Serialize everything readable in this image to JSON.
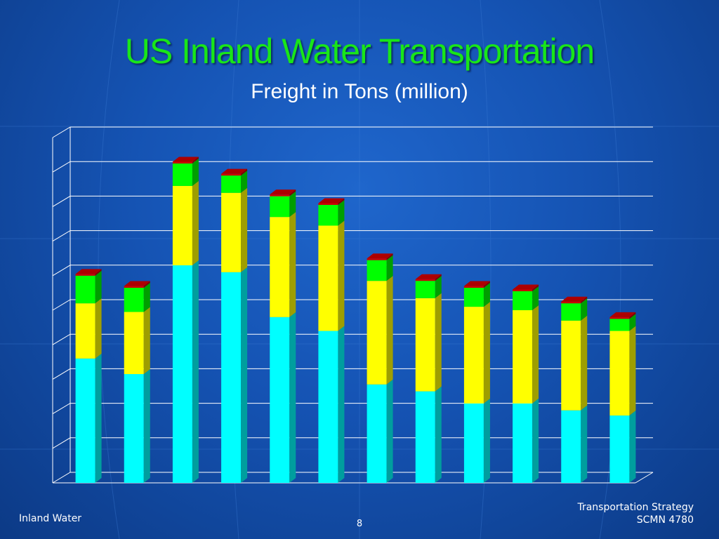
{
  "slide": {
    "title": "US Inland Water Transportation",
    "subtitle": "Freight in Tons (million)"
  },
  "footer": {
    "left": "Inland Water",
    "page_number": "8",
    "right_line1": "Transportation Strategy",
    "right_line2": "SCMN 4780"
  },
  "colors": {
    "series_1": "#00ffff",
    "series_2": "#ffff00",
    "series_3": "#00ff00",
    "series_4": "#cc0000",
    "background": "#1553b3"
  },
  "chart_data": {
    "type": "bar",
    "stacked": true,
    "three_d": true,
    "categories": [
      "",
      "",
      "",
      "",
      "",
      "",
      "",
      "",
      "",
      "",
      "",
      ""
    ],
    "series": [
      {
        "values": [
          3.6,
          3.15,
          6.3,
          6.1,
          4.8,
          4.4,
          2.85,
          2.65,
          2.3,
          2.3,
          2.1,
          1.95
        ]
      },
      {
        "values": [
          1.6,
          1.8,
          2.3,
          2.3,
          2.9,
          3.05,
          3.0,
          2.7,
          2.8,
          2.7,
          2.6,
          2.45
        ]
      },
      {
        "values": [
          0.8,
          0.7,
          0.65,
          0.5,
          0.6,
          0.6,
          0.6,
          0.5,
          0.55,
          0.55,
          0.5,
          0.35
        ]
      },
      {
        "values": [
          0.05,
          0.05,
          0.05,
          0.05,
          0.05,
          0.05,
          0.05,
          0.05,
          0.05,
          0.05,
          0.05,
          0.05
        ]
      }
    ],
    "ylim": [
      0,
      10
    ],
    "y_gridlines": 10,
    "grid": true,
    "legend": "none",
    "title": "",
    "xlabel": "",
    "ylabel": ""
  }
}
